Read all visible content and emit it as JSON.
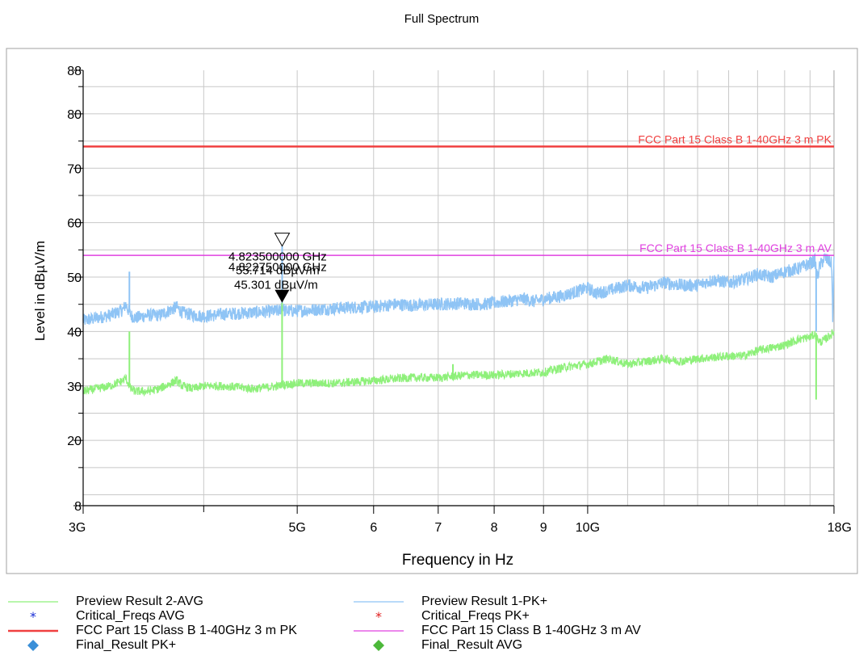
{
  "chart_data": {
    "type": "line",
    "title": "Full Spectrum",
    "xlabel": "Frequency in Hz",
    "ylabel": "Level in dBµV/m",
    "x_scale": "log",
    "xlim": [
      3,
      18
    ],
    "x_unit": "GHz",
    "ylim": [
      8,
      88
    ],
    "y_ticks": [
      8,
      20,
      30,
      40,
      50,
      60,
      70,
      80,
      88
    ],
    "x_tick_labels": [
      {
        "value": 3,
        "label": "3G"
      },
      {
        "value": 5,
        "label": "5G"
      },
      {
        "value": 6,
        "label": "6"
      },
      {
        "value": 7,
        "label": "7"
      },
      {
        "value": 8,
        "label": "8"
      },
      {
        "value": 9,
        "label": "9"
      },
      {
        "value": 10,
        "label": "10G"
      },
      {
        "value": 18,
        "label": "18G"
      }
    ],
    "x_minor_ticks": [
      4
    ],
    "grid": true,
    "series": [
      {
        "name": "Preview Result 1-PK+",
        "color": "#8fc4f5",
        "x": [
          3.0,
          3.1,
          3.2,
          3.3,
          3.32,
          3.34,
          3.36,
          3.4,
          3.5,
          3.6,
          3.75,
          3.8,
          3.9,
          4.0,
          4.2,
          4.5,
          4.8,
          4.82,
          4.85,
          5.0,
          5.2,
          5.5,
          5.8,
          6.0,
          6.3,
          6.6,
          7.0,
          7.4,
          7.8,
          8.2,
          8.6,
          8.8,
          9.0,
          9.4,
          9.8,
          10.0,
          10.2,
          10.5,
          11.0,
          11.5,
          12.0,
          12.5,
          13.0,
          13.5,
          14.0,
          14.5,
          15.0,
          15.5,
          16.0,
          16.5,
          17.0,
          17.2,
          17.3,
          17.4,
          17.6,
          17.9,
          17.95,
          18.0
        ],
        "values": [
          42,
          42.5,
          43,
          44,
          45,
          44,
          43,
          42.5,
          43,
          43,
          44.5,
          43.5,
          43,
          42.8,
          43.2,
          43.5,
          43.8,
          45.3,
          43.8,
          43.8,
          44.0,
          44.3,
          44.5,
          44.5,
          45.0,
          44.8,
          45.0,
          45.2,
          45.0,
          45.5,
          46.0,
          45.5,
          46.0,
          46.5,
          47.5,
          48.0,
          47.0,
          47.5,
          48.5,
          48.0,
          49.0,
          48.5,
          48.5,
          49.5,
          49.0,
          49.5,
          50.5,
          50.0,
          51.0,
          51.5,
          52.5,
          53.0,
          50.0,
          52.0,
          53.5,
          52.5,
          42.0,
          53.0
        ],
        "noise": 1.2
      },
      {
        "name": "Preview Result 2-AVG",
        "color": "#8ef07a",
        "x": [
          3.0,
          3.1,
          3.2,
          3.3,
          3.32,
          3.34,
          3.36,
          3.4,
          3.5,
          3.6,
          3.75,
          3.8,
          3.9,
          4.0,
          4.2,
          4.5,
          4.8,
          4.82,
          4.85,
          5.0,
          5.5,
          6.0,
          6.5,
          7.0,
          7.5,
          8.0,
          8.5,
          9.0,
          9.5,
          10.0,
          10.5,
          11.0,
          11.5,
          12.0,
          12.5,
          13.0,
          14.0,
          14.5,
          15.0,
          15.5,
          16.0,
          16.5,
          17.0,
          17.2,
          17.4,
          17.6,
          17.9,
          18.0
        ],
        "values": [
          29,
          29.5,
          30,
          31,
          31.5,
          30.5,
          29.5,
          29,
          29,
          29.5,
          31,
          30,
          29.5,
          30,
          30,
          29.5,
          30,
          30.5,
          30.2,
          30.5,
          30.5,
          31.0,
          31.5,
          31.5,
          32.0,
          32.0,
          32.3,
          32.5,
          33.5,
          34.0,
          35.0,
          34.0,
          34.5,
          35.0,
          34.5,
          35.0,
          35.5,
          35.5,
          36.5,
          37.0,
          37.5,
          38.5,
          39.0,
          39.5,
          38.0,
          38.5,
          39.5,
          40.0
        ],
        "noise": 0.8
      }
    ],
    "spikes": [
      {
        "series": "Preview Result 1-PK+",
        "x": 3.35,
        "y": 51
      },
      {
        "series": "Preview Result 1-PK+",
        "x": 4.8235,
        "y": 55.7
      },
      {
        "series": "Preview Result 1-PK+",
        "x": 17.25,
        "y": 40
      },
      {
        "series": "Preview Result 2-AVG",
        "x": 3.35,
        "y": 40
      },
      {
        "series": "Preview Result 2-AVG",
        "x": 4.82275,
        "y": 45.3
      },
      {
        "series": "Preview Result 2-AVG",
        "x": 7.25,
        "y": 34
      },
      {
        "series": "Preview Result 2-AVG",
        "x": 17.25,
        "y": 27.5
      }
    ],
    "limit_lines": [
      {
        "name": "FCC Part 15 Class B 1-40GHz 3 m PK",
        "value": 74,
        "color": "#f04040"
      },
      {
        "name": "FCC Part 15 Class B 1-40GHz 3 m AV",
        "value": 54,
        "color": "#e040e0"
      }
    ],
    "markers": [
      {
        "type": "open-triangle",
        "x": 4.8235,
        "y": 55.7,
        "freq_label": "4.823500000 GHz",
        "level_label": "55.714 dBµV/m"
      },
      {
        "type": "filled-triangle",
        "x": 4.82275,
        "y": 45.3,
        "freq_label": "4.822750000 GHz",
        "level_label": "45.301 dBµV/m"
      }
    ],
    "legend_position": "bottom"
  },
  "legend": [
    {
      "label": "Preview Result 2-AVG",
      "symbol": "line",
      "color": "#8ef07a"
    },
    {
      "label": "Preview Result 1-PK+",
      "symbol": "line",
      "color": "#8fc4f5"
    },
    {
      "label": "Critical_Freqs AVG",
      "symbol": "asterisk",
      "color": "#1a2fd6"
    },
    {
      "label": "Critical_Freqs PK+",
      "symbol": "asterisk",
      "color": "#e02020"
    },
    {
      "label": "FCC Part 15 Class B 1-40GHz 3 m PK",
      "symbol": "line-thick",
      "color": "#f04040"
    },
    {
      "label": "FCC Part 15 Class B 1-40GHz 3 m AV",
      "symbol": "line",
      "color": "#e040e0"
    },
    {
      "label": "Final_Result PK+",
      "symbol": "diamond",
      "color": "#3a8fd8"
    },
    {
      "label": "Final_Result AVG",
      "symbol": "diamond",
      "color": "#4cb83a"
    }
  ]
}
